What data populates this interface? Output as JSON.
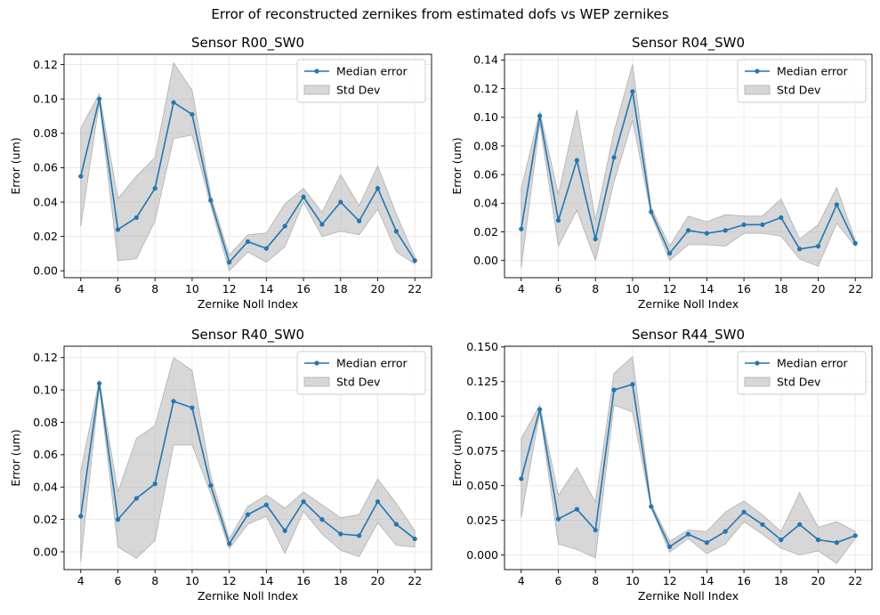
{
  "figure": {
    "suptitle": "Error of reconstructed zernikes from estimated dofs vs WEP zernikes"
  },
  "colors": {
    "line": "#1f77b4",
    "band": "#b0b0b0",
    "grid": "#e6e6e6"
  },
  "chart_data": [
    {
      "type": "line",
      "title": "Sensor R00_SW0",
      "xlabel": "Zernike Noll Index",
      "ylabel": "Error (um)",
      "xlim": [
        3.1,
        22.9
      ],
      "ylim": [
        -0.004,
        0.126
      ],
      "xticks": [
        4,
        6,
        8,
        10,
        12,
        14,
        16,
        18,
        20,
        22
      ],
      "yticks": [
        0.0,
        0.02,
        0.04,
        0.06,
        0.08,
        0.1,
        0.12
      ],
      "ytick_labels": [
        "0.00",
        "0.02",
        "0.04",
        "0.06",
        "0.08",
        "0.10",
        "0.12"
      ],
      "legend": [
        "Median error",
        "Std Dev"
      ],
      "legend_position": "top-right",
      "x": [
        4,
        5,
        6,
        7,
        8,
        9,
        10,
        11,
        12,
        13,
        14,
        15,
        16,
        17,
        18,
        19,
        20,
        21,
        22
      ],
      "median": [
        0.055,
        0.1,
        0.024,
        0.031,
        0.048,
        0.098,
        0.091,
        0.041,
        0.005,
        0.017,
        0.013,
        0.026,
        0.043,
        0.027,
        0.04,
        0.029,
        0.048,
        0.023,
        0.006
      ],
      "lower": [
        0.026,
        0.098,
        0.006,
        0.007,
        0.029,
        0.077,
        0.079,
        0.038,
        0.0,
        0.011,
        0.005,
        0.014,
        0.04,
        0.02,
        0.023,
        0.021,
        0.036,
        0.011,
        0.004
      ],
      "upper": [
        0.083,
        0.103,
        0.042,
        0.055,
        0.066,
        0.121,
        0.105,
        0.044,
        0.009,
        0.021,
        0.022,
        0.039,
        0.048,
        0.034,
        0.056,
        0.038,
        0.061,
        0.033,
        0.008
      ]
    },
    {
      "type": "line",
      "title": "Sensor R04_SW0",
      "xlabel": "Zernike Noll Index",
      "ylabel": "Error (um)",
      "xlim": [
        3.1,
        22.9
      ],
      "ylim": [
        -0.012,
        0.144
      ],
      "xticks": [
        4,
        6,
        8,
        10,
        12,
        14,
        16,
        18,
        20,
        22
      ],
      "yticks": [
        0.0,
        0.02,
        0.04,
        0.06,
        0.08,
        0.1,
        0.12,
        0.14
      ],
      "ytick_labels": [
        "0.00",
        "0.02",
        "0.04",
        "0.06",
        "0.08",
        "0.10",
        "0.12",
        "0.14"
      ],
      "legend": [
        "Median error",
        "Std Dev"
      ],
      "legend_position": "top-right",
      "x": [
        4,
        5,
        6,
        7,
        8,
        9,
        10,
        11,
        12,
        13,
        14,
        15,
        16,
        17,
        18,
        19,
        20,
        21,
        22
      ],
      "median": [
        0.022,
        0.101,
        0.028,
        0.07,
        0.015,
        0.072,
        0.118,
        0.034,
        0.005,
        0.021,
        0.019,
        0.021,
        0.025,
        0.025,
        0.03,
        0.008,
        0.01,
        0.039,
        0.012
      ],
      "lower": [
        -0.005,
        0.096,
        0.01,
        0.035,
        0.0,
        0.055,
        0.098,
        0.032,
        0.0,
        0.011,
        0.011,
        0.01,
        0.019,
        0.019,
        0.017,
        0.001,
        -0.004,
        0.026,
        0.01
      ],
      "upper": [
        0.05,
        0.104,
        0.046,
        0.105,
        0.028,
        0.09,
        0.137,
        0.037,
        0.01,
        0.031,
        0.027,
        0.032,
        0.031,
        0.031,
        0.043,
        0.015,
        0.025,
        0.051,
        0.014
      ]
    },
    {
      "type": "line",
      "title": "Sensor R40_SW0",
      "xlabel": "Zernike Noll Index",
      "ylabel": "Error (um)",
      "xlim": [
        3.1,
        22.9
      ],
      "ylim": [
        -0.011,
        0.127
      ],
      "xticks": [
        4,
        6,
        8,
        10,
        12,
        14,
        16,
        18,
        20,
        22
      ],
      "yticks": [
        0.0,
        0.02,
        0.04,
        0.06,
        0.08,
        0.1,
        0.12
      ],
      "ytick_labels": [
        "0.00",
        "0.02",
        "0.04",
        "0.06",
        "0.08",
        "0.10",
        "0.12"
      ],
      "legend": [
        "Median error",
        "Std Dev"
      ],
      "legend_position": "top-right",
      "x": [
        4,
        5,
        6,
        7,
        8,
        9,
        10,
        11,
        12,
        13,
        14,
        15,
        16,
        17,
        18,
        19,
        20,
        21,
        22
      ],
      "median": [
        0.022,
        0.104,
        0.02,
        0.033,
        0.042,
        0.093,
        0.089,
        0.041,
        0.005,
        0.023,
        0.029,
        0.013,
        0.031,
        0.02,
        0.011,
        0.01,
        0.031,
        0.017,
        0.008
      ],
      "lower": [
        -0.006,
        0.102,
        0.003,
        -0.004,
        0.007,
        0.066,
        0.066,
        0.036,
        0.002,
        0.017,
        0.022,
        -0.001,
        0.025,
        0.011,
        0.001,
        -0.003,
        0.018,
        0.004,
        0.003
      ],
      "upper": [
        0.05,
        0.106,
        0.037,
        0.07,
        0.078,
        0.12,
        0.112,
        0.047,
        0.008,
        0.028,
        0.035,
        0.027,
        0.037,
        0.029,
        0.021,
        0.023,
        0.045,
        0.03,
        0.013
      ]
    },
    {
      "type": "line",
      "title": "Sensor R44_SW0",
      "xlabel": "Zernike Noll Index",
      "ylabel": "Error (um)",
      "xlim": [
        3.1,
        22.9
      ],
      "ylim": [
        -0.0105,
        0.1505
      ],
      "xticks": [
        4,
        6,
        8,
        10,
        12,
        14,
        16,
        18,
        20,
        22
      ],
      "yticks": [
        0.0,
        0.025,
        0.05,
        0.075,
        0.1,
        0.125,
        0.15
      ],
      "ytick_labels": [
        "0.000",
        "0.025",
        "0.050",
        "0.075",
        "0.100",
        "0.125",
        "0.150"
      ],
      "legend": [
        "Median error",
        "Std Dev"
      ],
      "legend_position": "top-right",
      "x": [
        4,
        5,
        6,
        7,
        8,
        9,
        10,
        11,
        12,
        13,
        14,
        15,
        16,
        17,
        18,
        19,
        20,
        21,
        22
      ],
      "median": [
        0.055,
        0.105,
        0.026,
        0.033,
        0.018,
        0.119,
        0.123,
        0.035,
        0.006,
        0.015,
        0.009,
        0.017,
        0.031,
        0.022,
        0.011,
        0.022,
        0.011,
        0.009,
        0.014
      ],
      "lower": [
        0.027,
        0.103,
        0.008,
        0.004,
        -0.002,
        0.108,
        0.103,
        0.034,
        0.002,
        0.012,
        0.001,
        0.008,
        0.024,
        0.015,
        0.005,
        0.0,
        0.003,
        -0.006,
        0.012
      ],
      "upper": [
        0.084,
        0.108,
        0.043,
        0.063,
        0.038,
        0.131,
        0.143,
        0.037,
        0.01,
        0.018,
        0.017,
        0.031,
        0.039,
        0.029,
        0.017,
        0.045,
        0.02,
        0.024,
        0.017
      ]
    }
  ]
}
